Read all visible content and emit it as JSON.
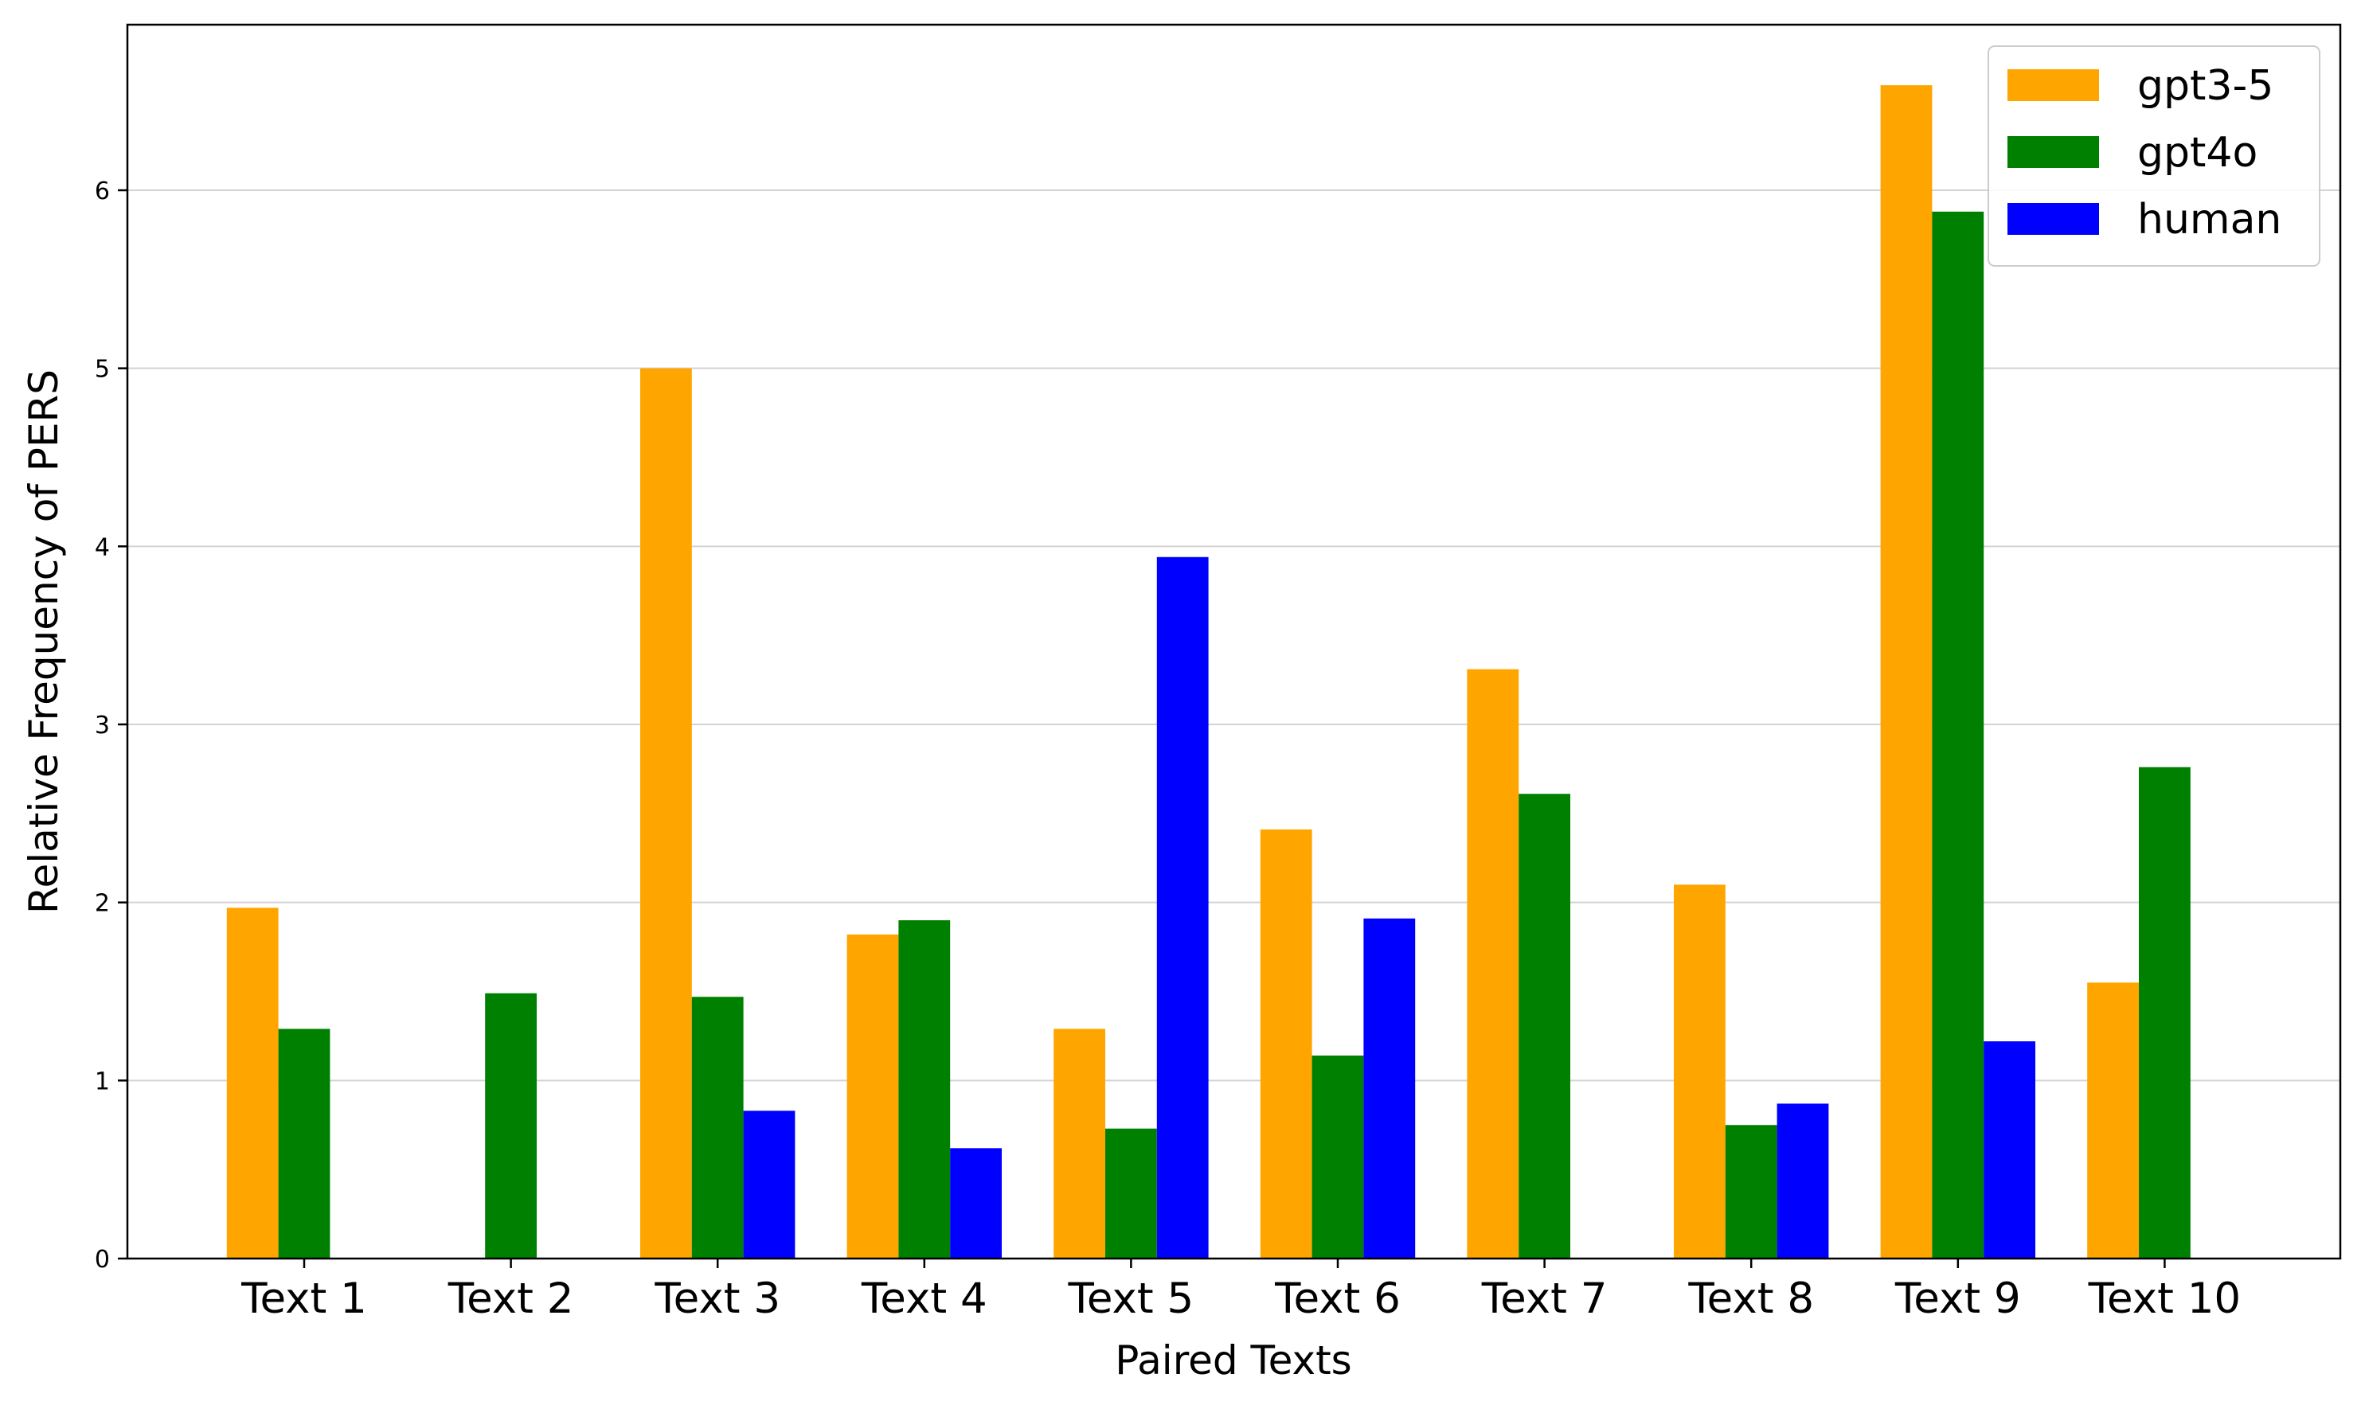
{
  "chart_data": {
    "type": "bar",
    "title": "",
    "xlabel": "Paired Texts",
    "ylabel": "Relative Frequency of PERS",
    "categories": [
      "Text 1",
      "Text 2",
      "Text 3",
      "Text 4",
      "Text 5",
      "Text 6",
      "Text 7",
      "Text 8",
      "Text 9",
      "Text 10"
    ],
    "series": [
      {
        "name": "gpt3-5",
        "color": "#FFA500",
        "values": [
          1.97,
          0,
          5.0,
          1.82,
          1.29,
          2.41,
          3.31,
          2.1,
          6.59,
          1.55
        ]
      },
      {
        "name": "gpt4o",
        "color": "#008000",
        "values": [
          1.29,
          1.49,
          1.47,
          1.9,
          0.73,
          1.14,
          2.61,
          0.75,
          5.88,
          2.76
        ]
      },
      {
        "name": "human",
        "color": "#0000FF",
        "values": [
          0,
          0,
          0.83,
          0.62,
          3.94,
          1.91,
          0,
          0.87,
          1.22,
          0
        ]
      }
    ],
    "ylim": [
      0,
      6.93
    ],
    "yticks": [
      0,
      1,
      2,
      3,
      4,
      5,
      6
    ],
    "grid": "horizontal",
    "legend_position": "top-right"
  }
}
